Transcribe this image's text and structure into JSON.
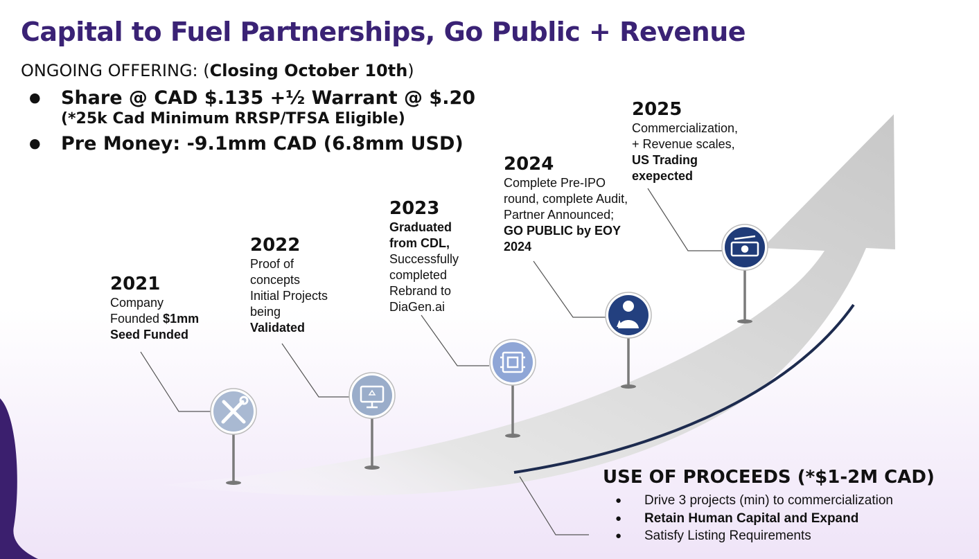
{
  "title": "Capital to Fuel Partnerships, Go Public + Revenue",
  "offering": {
    "label": "ONGOING OFFERING: (",
    "closing": "Closing October 10th",
    "close_paren": ")",
    "bullets": [
      "Share @ CAD $.135 +½ Warrant @ $.20",
      "Pre Money: -9.1mm CAD (6.8mm USD)"
    ],
    "note": "(*25k Cad Minimum RRSP/TFSA Eligible)"
  },
  "milestones": [
    {
      "year": "2021",
      "lines": [
        "Company",
        "Founded ",
        "$1mm",
        "Seed Funded"
      ],
      "icon": "tools-icon"
    },
    {
      "year": "2022",
      "lines": [
        "Proof of",
        "concepts",
        "Initial Projects",
        "being",
        "Validated"
      ],
      "icon": "monitor-icon"
    },
    {
      "year": "2023",
      "lines": [
        "Graduated",
        "from CDL,",
        "Successfully",
        "completed",
        "Rebrand to",
        "DiaGen.ai"
      ],
      "icon": "chip-icon"
    },
    {
      "year": "2024",
      "lines": [
        "Complete Pre-IPO",
        "round, complete Audit,",
        "Partner Announced;",
        "GO PUBLIC by EOY",
        "2024"
      ],
      "icon": "scientist-icon"
    },
    {
      "year": "2025",
      "lines": [
        "Commercialization,",
        "+ Revenue scales,",
        "US Trading",
        "exepected"
      ],
      "icon": "money-icon"
    }
  ],
  "use_of_proceeds": {
    "title": "USE OF PROCEEDS (*$1-2M CAD)",
    "items": [
      "Drive 3 projects (min) to commercialization",
      "Retain Human Capital and Expand",
      "Satisfy Listing Requirements"
    ]
  },
  "colors": {
    "title": "#3a2275",
    "arrow": "#cfcfcf",
    "navy_curve": "#1d2b4f",
    "icon_light": "#9fb2cf",
    "icon_dark": "#1e3a78",
    "corner": "#3b1f6e"
  }
}
